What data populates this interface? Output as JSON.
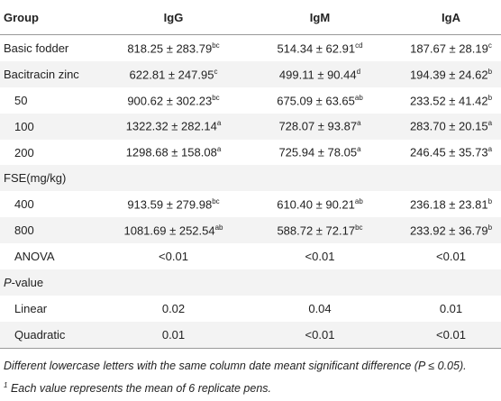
{
  "table": {
    "header": [
      "Group",
      "IgG",
      "IgM",
      "IgA"
    ],
    "rows": [
      {
        "label": "Basic fodder",
        "indent": false,
        "cells": [
          {
            "text": "818.25 ± 283.79",
            "sup": "bc"
          },
          {
            "text": "514.34 ± 62.91",
            "sup": "cd"
          },
          {
            "text": "187.67 ± 28.19",
            "sup": "c"
          }
        ]
      },
      {
        "label": "Bacitracin zinc",
        "indent": false,
        "cells": [
          {
            "text": "622.81 ± 247.95",
            "sup": "c"
          },
          {
            "text": "499.11 ± 90.44",
            "sup": "d"
          },
          {
            "text": "194.39 ± 24.62",
            "sup": "b"
          }
        ]
      },
      {
        "label": "50",
        "indent": true,
        "cells": [
          {
            "text": "900.62 ± 302.23",
            "sup": "bc"
          },
          {
            "text": "675.09 ± 63.65",
            "sup": "ab"
          },
          {
            "text": "233.52 ± 41.42",
            "sup": "b"
          }
        ]
      },
      {
        "label": "100",
        "indent": true,
        "cells": [
          {
            "text": "1322.32 ± 282.14",
            "sup": "a"
          },
          {
            "text": "728.07 ± 93.87",
            "sup": "a"
          },
          {
            "text": "283.70 ± 20.15",
            "sup": "a"
          }
        ]
      },
      {
        "label": "200",
        "indent": true,
        "cells": [
          {
            "text": "1298.68 ± 158.08",
            "sup": "a"
          },
          {
            "text": "725.94 ± 78.05",
            "sup": "a"
          },
          {
            "text": "246.45 ± 35.73",
            "sup": "a"
          }
        ]
      },
      {
        "label": "FSE(mg/kg)",
        "indent": false,
        "cells": []
      },
      {
        "label": "400",
        "indent": true,
        "cells": [
          {
            "text": "913.59 ± 279.98",
            "sup": "bc"
          },
          {
            "text": "610.40 ± 90.21",
            "sup": "ab"
          },
          {
            "text": "236.18 ± 23.81",
            "sup": "b"
          }
        ]
      },
      {
        "label": "800",
        "indent": true,
        "cells": [
          {
            "text": "1081.69 ± 252.54",
            "sup": "ab"
          },
          {
            "text": "588.72 ± 72.17",
            "sup": "bc"
          },
          {
            "text": "233.92 ± 36.79",
            "sup": "b"
          }
        ]
      },
      {
        "label": "ANOVA",
        "indent": true,
        "cells": [
          "<0.01",
          "<0.01",
          "<0.01"
        ]
      },
      {
        "label": {
          "italic": "P",
          "text": "-value"
        },
        "indent": false,
        "cells": []
      },
      {
        "label": "Linear",
        "indent": true,
        "cells": [
          "0.02",
          "0.04",
          "0.01"
        ]
      },
      {
        "label": "Quadratic",
        "indent": true,
        "cells": [
          "0.01",
          "<0.01",
          "<0.01"
        ]
      }
    ]
  },
  "footnotes": [
    {
      "text": "Different lowercase letters with the same column date meant significant difference (P ≤ 0.05)."
    },
    {
      "mark": "1",
      "text": "Each value represents the mean of 6 replicate pens."
    }
  ]
}
